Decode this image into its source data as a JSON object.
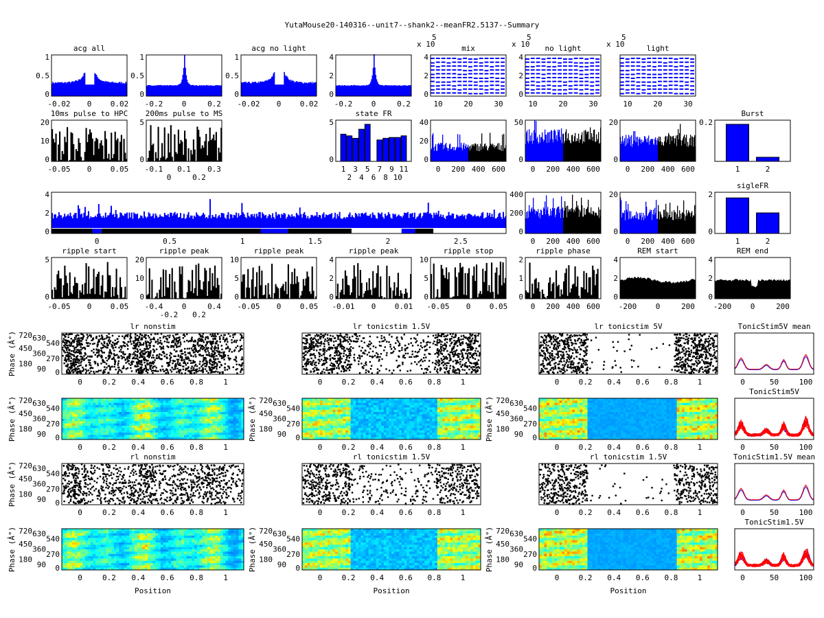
{
  "figure_title": "YutaMouse20-140316--unit7--shank2--meanFR2.5137--Summary",
  "colors": {
    "blue": "#0000ff",
    "black": "#000000",
    "red": "#ff0000"
  },
  "chart_data": [
    {
      "type": "bar",
      "title": "acg all",
      "xticks": [
        "-0.02",
        "0",
        "0.02"
      ],
      "yticks": [
        "0",
        "0.5",
        "1"
      ]
    },
    {
      "type": "bar",
      "title": "",
      "xticks": [
        "-0.2",
        "0",
        "0.2"
      ],
      "yticks": [
        "0",
        "0.5",
        "1"
      ]
    },
    {
      "type": "bar",
      "title": "acg no light",
      "xticks": [
        "-0.02",
        "0",
        "0.02"
      ],
      "yticks": [
        "0",
        "0.5",
        "1"
      ]
    },
    {
      "type": "bar",
      "title": "",
      "xticks": [
        "-0.2",
        "0",
        "0.2"
      ],
      "yticks": [
        "0",
        "2",
        "4"
      ]
    },
    {
      "type": "line",
      "title": "mix",
      "exponent": "x 10",
      "exp_power": "5",
      "xticks": [
        "10",
        "20",
        "30"
      ],
      "yticks": [
        "0",
        "2",
        "4"
      ]
    },
    {
      "type": "line",
      "title": "no light",
      "exponent": "x 10",
      "exp_power": "5",
      "xticks": [
        "10",
        "20",
        "30"
      ],
      "yticks": [
        "0",
        "2",
        "4"
      ]
    },
    {
      "type": "line",
      "title": "light",
      "exponent": "x 10",
      "exp_power": "5",
      "xticks": [
        "10",
        "20",
        "30"
      ],
      "yticks": []
    },
    {
      "type": "bar",
      "title": "10ms pulse to HPC",
      "xticks": [
        "-0.05",
        "0",
        "0.05"
      ],
      "yticks": [
        "0",
        "10",
        "20"
      ]
    },
    {
      "type": "bar",
      "title": "200ms pulse to MS",
      "xticks": [
        "-0.1",
        "0",
        "0.1",
        "0.2",
        "0.3"
      ],
      "yticks": [
        "0",
        "5"
      ]
    },
    {
      "type": "bar",
      "title": "state FR",
      "categories": [
        "1",
        "2",
        "3",
        "4",
        "5",
        "6",
        "7",
        "8",
        "9",
        "10",
        "11"
      ],
      "values": [
        3.3,
        3.1,
        2.8,
        3.9,
        4.5,
        0,
        2.6,
        2.8,
        2.9,
        2.9,
        3.1
      ],
      "xticks": [
        "1",
        "2",
        "3",
        "4",
        "5",
        "6",
        "7",
        "8",
        "9",
        "10",
        "11"
      ],
      "yticks": [
        "0",
        "5"
      ]
    },
    {
      "type": "bar",
      "title": "",
      "xticks": [
        "0",
        "200",
        "400",
        "600"
      ],
      "yticks": [
        "0",
        "20",
        "40"
      ]
    },
    {
      "type": "bar",
      "title": "",
      "xticks": [
        "0",
        "200",
        "400",
        "600"
      ],
      "yticks": [
        "0",
        "50"
      ]
    },
    {
      "type": "bar",
      "title": "",
      "xticks": [
        "0",
        "200",
        "400",
        "600"
      ],
      "yticks": [
        "0",
        "20"
      ]
    },
    {
      "type": "bar",
      "title": "Burst",
      "categories": [
        "1",
        "2"
      ],
      "values": [
        0.18,
        0.02
      ],
      "xticks": [
        "1",
        "2"
      ],
      "yticks": [
        "0.2"
      ]
    },
    {
      "type": "bar",
      "title": "",
      "xticks": [
        "0",
        "0.5",
        "1",
        "1.5",
        "2",
        "2.5"
      ],
      "yticks": [
        "0",
        "2",
        "4"
      ]
    },
    {
      "type": "bar",
      "title": "",
      "xticks": [
        "0",
        "200",
        "400",
        "600"
      ],
      "yticks": [
        "0",
        "200",
        "400"
      ]
    },
    {
      "type": "bar",
      "title": "",
      "xticks": [
        "0",
        "200",
        "400",
        "600"
      ],
      "yticks": [
        "0",
        "20"
      ]
    },
    {
      "type": "bar",
      "title": "sigleFR",
      "categories": [
        "1",
        "2"
      ],
      "values": [
        1.9,
        1.1
      ],
      "xticks": [
        "1",
        "2"
      ],
      "yticks": [
        "0",
        "2"
      ]
    },
    {
      "type": "bar",
      "title": "ripple start",
      "xticks": [
        "-0.05",
        "0",
        "0.05"
      ],
      "yticks": [
        "0",
        "5"
      ]
    },
    {
      "type": "bar",
      "title": "ripple peak",
      "xticks": [
        "-0.4",
        "-0.2",
        "0",
        "0.2",
        "0.4"
      ],
      "yticks": [
        "0",
        "10",
        "20"
      ]
    },
    {
      "type": "bar",
      "title": "ripple peak",
      "xticks": [
        "-0.05",
        "0",
        "0.05"
      ],
      "yticks": [
        "0",
        "5",
        "10"
      ]
    },
    {
      "type": "bar",
      "title": "ripple peak",
      "xticks": [
        "-0.01",
        "0",
        "0.01"
      ],
      "yticks": [
        "0",
        "2",
        "4"
      ]
    },
    {
      "type": "bar",
      "title": "ripple stop",
      "xticks": [
        "-0.05",
        "0",
        "0.05"
      ],
      "yticks": [
        "0",
        "5",
        "10"
      ]
    },
    {
      "type": "bar",
      "title": "ripple phase",
      "xticks": [
        "0",
        "200",
        "400",
        "600"
      ],
      "yticks": [
        "0",
        "1",
        "2"
      ]
    },
    {
      "type": "area",
      "title": "REM start",
      "xticks": [
        "-200",
        "0",
        "200"
      ],
      "yticks": [
        "0",
        "2",
        "4"
      ]
    },
    {
      "type": "area",
      "title": "REM end",
      "xticks": [
        "-200",
        "0",
        "200"
      ],
      "yticks": [
        "0",
        "2",
        "4"
      ]
    },
    {
      "type": "scatter",
      "title": "lr nonstim",
      "ylabel": "Phase (Â°)",
      "xticks": [
        "0",
        "0.2",
        "0.4",
        "0.6",
        "0.8",
        "1"
      ],
      "yticks": [
        "0",
        "90",
        "180",
        "270",
        "360",
        "450",
        "540",
        "630",
        "720"
      ]
    },
    {
      "type": "scatter",
      "title": "lr tonicstim 1.5V",
      "ylabel": "",
      "xticks": [
        "0",
        "0.2",
        "0.4",
        "0.6",
        "0.8",
        "1"
      ],
      "yticks": []
    },
    {
      "type": "scatter",
      "title": "lr tonicstim 5V",
      "ylabel": "",
      "xticks": [
        "0",
        "0.2",
        "0.4",
        "0.6",
        "0.8",
        "1"
      ],
      "yticks": []
    },
    {
      "type": "line",
      "title": "TonicStim5V mean",
      "xticks": [
        "0",
        "50",
        "100"
      ],
      "yticks": []
    },
    {
      "type": "heatmap",
      "title": "",
      "ylabel": "Phase (Â°)",
      "xticks": [
        "0",
        "0.2",
        "0.4",
        "0.6",
        "0.8",
        "1"
      ],
      "yticks": [
        "0",
        "90",
        "180",
        "270",
        "360",
        "450",
        "540",
        "630",
        "720"
      ]
    },
    {
      "type": "heatmap",
      "title": "",
      "ylabel": "Phase (Â°)",
      "xticks": [
        "0",
        "0.2",
        "0.4",
        "0.6",
        "0.8",
        "1"
      ],
      "yticks": [
        "0",
        "90",
        "180",
        "270",
        "360",
        "450",
        "540",
        "630",
        "720"
      ]
    },
    {
      "type": "heatmap",
      "title": "",
      "ylabel": "Phase (Â°)",
      "xticks": [
        "0",
        "0.2",
        "0.4",
        "0.6",
        "0.8",
        "1"
      ],
      "yticks": [
        "0",
        "90",
        "180",
        "270",
        "360",
        "450",
        "540",
        "630",
        "720"
      ]
    },
    {
      "type": "line",
      "title": "TonicStim5V",
      "xticks": [
        "0",
        "50",
        "100"
      ],
      "yticks": []
    },
    {
      "type": "scatter",
      "title": "rl nonstim",
      "ylabel": "Phase (Â°)",
      "xticks": [
        "0",
        "0.2",
        "0.4",
        "0.6",
        "0.8",
        "1"
      ],
      "yticks": [
        "0",
        "90",
        "180",
        "270",
        "360",
        "450",
        "540",
        "630",
        "720"
      ]
    },
    {
      "type": "scatter",
      "title": "rl tonicstim 1.5V",
      "ylabel": "",
      "xticks": [
        "0",
        "0.2",
        "0.4",
        "0.6",
        "0.8",
        "1"
      ],
      "yticks": []
    },
    {
      "type": "scatter",
      "title": "rl tonicstim 1.5V",
      "ylabel": "",
      "xticks": [
        "0",
        "0.2",
        "0.4",
        "0.6",
        "0.8",
        "1"
      ],
      "yticks": []
    },
    {
      "type": "line",
      "title": "TonicStim1.5V mean",
      "xticks": [
        "0",
        "50",
        "100"
      ],
      "yticks": []
    },
    {
      "type": "heatmap",
      "title": "",
      "ylabel": "Phase (Â°)",
      "xlabel": "Position",
      "xticks": [
        "0",
        "0.2",
        "0.4",
        "0.6",
        "0.8",
        "1"
      ],
      "yticks": [
        "0",
        "90",
        "180",
        "270",
        "360",
        "450",
        "540",
        "630",
        "720"
      ]
    },
    {
      "type": "heatmap",
      "title": "",
      "ylabel": "Phase (Â°)",
      "xlabel": "Position",
      "xticks": [
        "0",
        "0.2",
        "0.4",
        "0.6",
        "0.8",
        "1"
      ],
      "yticks": [
        "0",
        "90",
        "180",
        "270",
        "360",
        "450",
        "540",
        "630",
        "720"
      ]
    },
    {
      "type": "heatmap",
      "title": "",
      "ylabel": "Phase (Â°)",
      "xlabel": "Position",
      "xticks": [
        "0",
        "0.2",
        "0.4",
        "0.6",
        "0.8",
        "1"
      ],
      "yticks": [
        "0",
        "90",
        "180",
        "270",
        "360",
        "450",
        "540",
        "630",
        "720"
      ]
    },
    {
      "type": "line",
      "title": "TonicStim1.5V",
      "xticks": [
        "0",
        "50",
        "100"
      ],
      "yticks": []
    }
  ]
}
